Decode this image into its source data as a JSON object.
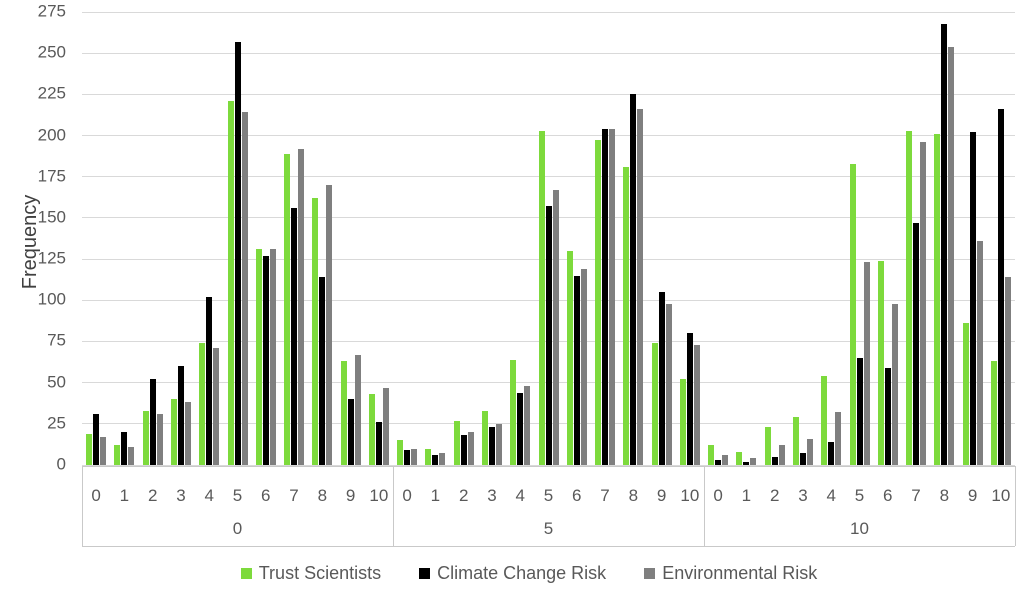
{
  "chart_data": {
    "type": "bar",
    "title": "",
    "ylabel": "Frequency",
    "ylim": [
      0,
      275
    ],
    "ytick_step": 25,
    "grid": true,
    "legend_position": "bottom",
    "panel_labels": [
      "0",
      "5",
      "10"
    ],
    "categories": [
      "0",
      "1",
      "2",
      "3",
      "4",
      "5",
      "6",
      "7",
      "8",
      "9",
      "10"
    ],
    "series": [
      {
        "name": "Trust Scientists",
        "color": "#7DDA3C",
        "values_by_panel": [
          [
            19,
            12,
            33,
            40,
            74,
            221,
            131,
            189,
            162,
            63,
            43
          ],
          [
            15,
            10,
            27,
            33,
            64,
            203,
            130,
            197,
            181,
            74,
            52
          ],
          [
            12,
            8,
            23,
            29,
            54,
            183,
            124,
            203,
            201,
            86,
            63
          ]
        ]
      },
      {
        "name": "Climate Change Risk",
        "color": "#000000",
        "values_by_panel": [
          [
            31,
            20,
            52,
            60,
            102,
            257,
            127,
            156,
            114,
            40,
            26
          ],
          [
            9,
            6,
            18,
            23,
            44,
            157,
            115,
            204,
            225,
            105,
            80
          ],
          [
            3,
            2,
            5,
            7,
            14,
            65,
            59,
            147,
            268,
            202,
            216
          ]
        ]
      },
      {
        "name": "Environmental Risk",
        "color": "#7F7F7F",
        "values_by_panel": [
          [
            17,
            11,
            31,
            38,
            71,
            214,
            131,
            192,
            170,
            67,
            47
          ],
          [
            10,
            7,
            20,
            25,
            48,
            167,
            119,
            204,
            216,
            98,
            73
          ],
          [
            6,
            4,
            12,
            16,
            32,
            123,
            98,
            196,
            254,
            136,
            114
          ]
        ]
      }
    ]
  },
  "colors": {
    "background": "#FFFFFF",
    "grid": "#D9D9D9",
    "axis_border": "#C9C9C9",
    "axis_text": "#595959",
    "y_title_text": "#404040"
  }
}
